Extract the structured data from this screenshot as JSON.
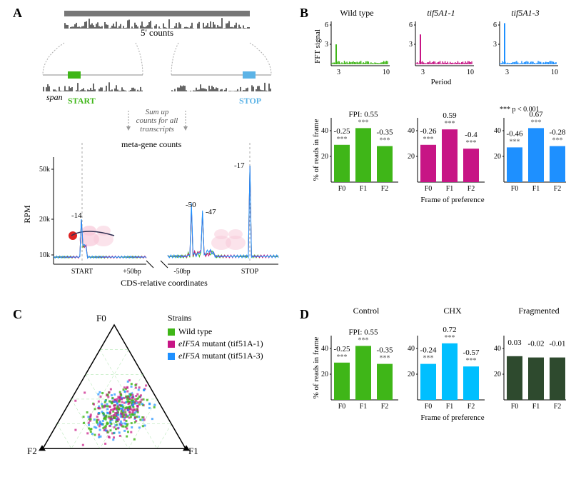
{
  "colors": {
    "wild_type": "#3fb618",
    "mutant1": "#c71585",
    "mutant3": "#1e90ff",
    "chx": "#00bfff",
    "fragmented": "#2e4a2e",
    "schematic_gray": "#999999",
    "schematic_dark": "#555555",
    "ribosome": "#f8c8d8",
    "start_box": "#3fb618",
    "stop_box": "#5cb3e6"
  },
  "panelA": {
    "label": "A",
    "five_prime": "5' counts",
    "span": "span",
    "start": "START",
    "stop": "STOP",
    "sum_text": "Sum up counts for all transcripts",
    "metagene": "meta-gene counts",
    "y_axis": "RPM",
    "x_axis": "CDS-relative coordinates",
    "y_ticks": [
      10,
      20,
      50
    ],
    "y_tick_labels": [
      "10k",
      "20k",
      "50k"
    ],
    "x_ticks_left": [
      "START",
      "+50bp"
    ],
    "x_ticks_right": [
      "-50bp",
      "STOP"
    ],
    "peak_labels": {
      "m14": "-14",
      "m50": "-50",
      "m47": "-47",
      "m17": "-17"
    }
  },
  "panelB": {
    "label": "B",
    "titles": [
      "Wild type",
      "tif5A1-1",
      "tif5A1-3"
    ],
    "fft_y_axis": "FFT signal",
    "fft_x_axis": "Period",
    "fft_y_ticks": [
      3,
      6
    ],
    "fft_x_ticks": [
      3,
      10
    ],
    "bar_y_axis": "% of reads in frame",
    "bar_x_axis": "Frame of preference",
    "bar_y_ticks": [
      20,
      40
    ],
    "bar_x_labels": [
      "F0",
      "F1",
      "F2"
    ],
    "sig_note": "*** p < 0.001",
    "datasets": [
      {
        "color": "#3fb618",
        "fft_peak": 3.0,
        "bars": [
          29,
          42,
          28
        ],
        "fpi": [
          "-0.25",
          "FPI: 0.55",
          "-0.35"
        ],
        "sig": [
          "***",
          "***",
          "***"
        ]
      },
      {
        "color": "#c71585",
        "fft_peak": 4.5,
        "bars": [
          29,
          41,
          26
        ],
        "fpi": [
          "-0.26",
          "0.59",
          "-0.4"
        ],
        "sig": [
          "***",
          "***",
          "***"
        ]
      },
      {
        "color": "#1e90ff",
        "fft_peak": 6.2,
        "bars": [
          27,
          42,
          28
        ],
        "fpi": [
          "-0.46",
          "0.67",
          "-0.28"
        ],
        "sig": [
          "***",
          "***",
          "***"
        ]
      }
    ]
  },
  "panelC": {
    "label": "C",
    "legend_title": "Strains",
    "legend_items": [
      {
        "color": "#3fb618",
        "label_plain": "Wild type",
        "label_italic": ""
      },
      {
        "color": "#c71585",
        "label_plain": "",
        "label_italic": "eIF5A",
        "label_after": " mutant (tif51A-1)"
      },
      {
        "color": "#1e90ff",
        "label_plain": "",
        "label_italic": "eIF5A",
        "label_after": " mutant (tif51A-3)"
      }
    ],
    "vertices": [
      "F0",
      "F1",
      "F2"
    ],
    "n_points": 450
  },
  "panelD": {
    "label": "D",
    "titles": [
      "Control",
      "CHX",
      "Fragmented"
    ],
    "bar_y_axis": "% of reads in frame",
    "bar_x_axis": "Frame of preference",
    "bar_y_ticks": [
      20,
      40
    ],
    "bar_x_labels": [
      "F0",
      "F1",
      "F2"
    ],
    "datasets": [
      {
        "color": "#3fb618",
        "bars": [
          29,
          42,
          28
        ],
        "fpi": [
          "-0.25",
          "FPI: 0.55",
          "-0.35"
        ],
        "sig": [
          "***",
          "***",
          "***"
        ]
      },
      {
        "color": "#00bfff",
        "bars": [
          28,
          44,
          26
        ],
        "fpi": [
          "-0.24",
          "0.72",
          "-0.57"
        ],
        "sig": [
          "***",
          "***",
          "***"
        ]
      },
      {
        "color": "#2e4a2e",
        "bars": [
          34,
          33,
          33
        ],
        "fpi": [
          "0.03",
          "-0.02",
          "-0.01"
        ],
        "sig": [
          "",
          "",
          ""
        ]
      }
    ]
  }
}
